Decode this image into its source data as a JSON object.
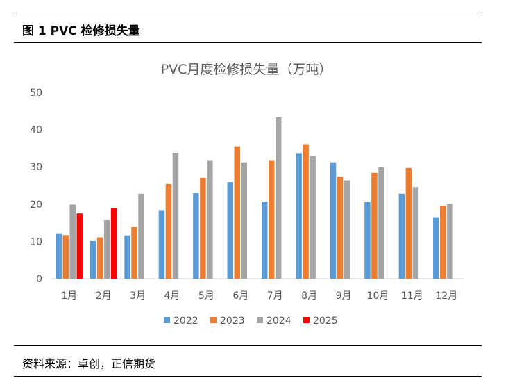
{
  "figure": {
    "title": "图 1 PVC 检修损失量",
    "source": "资料来源：卓创，正信期货"
  },
  "chart_data": {
    "type": "bar",
    "title": "PVC月度检修损失量（万吨）",
    "categories": [
      "1月",
      "2月",
      "3月",
      "4月",
      "5月",
      "6月",
      "7月",
      "8月",
      "9月",
      "10月",
      "11月",
      "12月"
    ],
    "ylim": [
      0,
      50
    ],
    "yticks": [
      0,
      10,
      20,
      30,
      40,
      50
    ],
    "grid": false,
    "legend_position": "bottom",
    "series": [
      {
        "name": "2022",
        "color": "#5B9BD5",
        "values": [
          12.2,
          10.1,
          11.6,
          18.4,
          23.1,
          25.9,
          20.7,
          33.7,
          31.2,
          20.6,
          22.8,
          16.5
        ]
      },
      {
        "name": "2023",
        "color": "#ED7D31",
        "values": [
          11.7,
          11.1,
          13.9,
          25.4,
          27.1,
          35.5,
          31.8,
          36.1,
          27.4,
          28.4,
          29.7,
          19.6
        ]
      },
      {
        "name": "2024",
        "color": "#A5A5A5",
        "values": [
          19.9,
          15.8,
          22.8,
          33.8,
          31.8,
          31.2,
          43.3,
          32.9,
          26.4,
          29.9,
          24.6,
          20.1
        ]
      },
      {
        "name": "2025",
        "color": "#FF0000",
        "values": [
          17.5,
          19.0,
          null,
          null,
          null,
          null,
          null,
          null,
          null,
          null,
          null,
          null
        ]
      }
    ]
  }
}
